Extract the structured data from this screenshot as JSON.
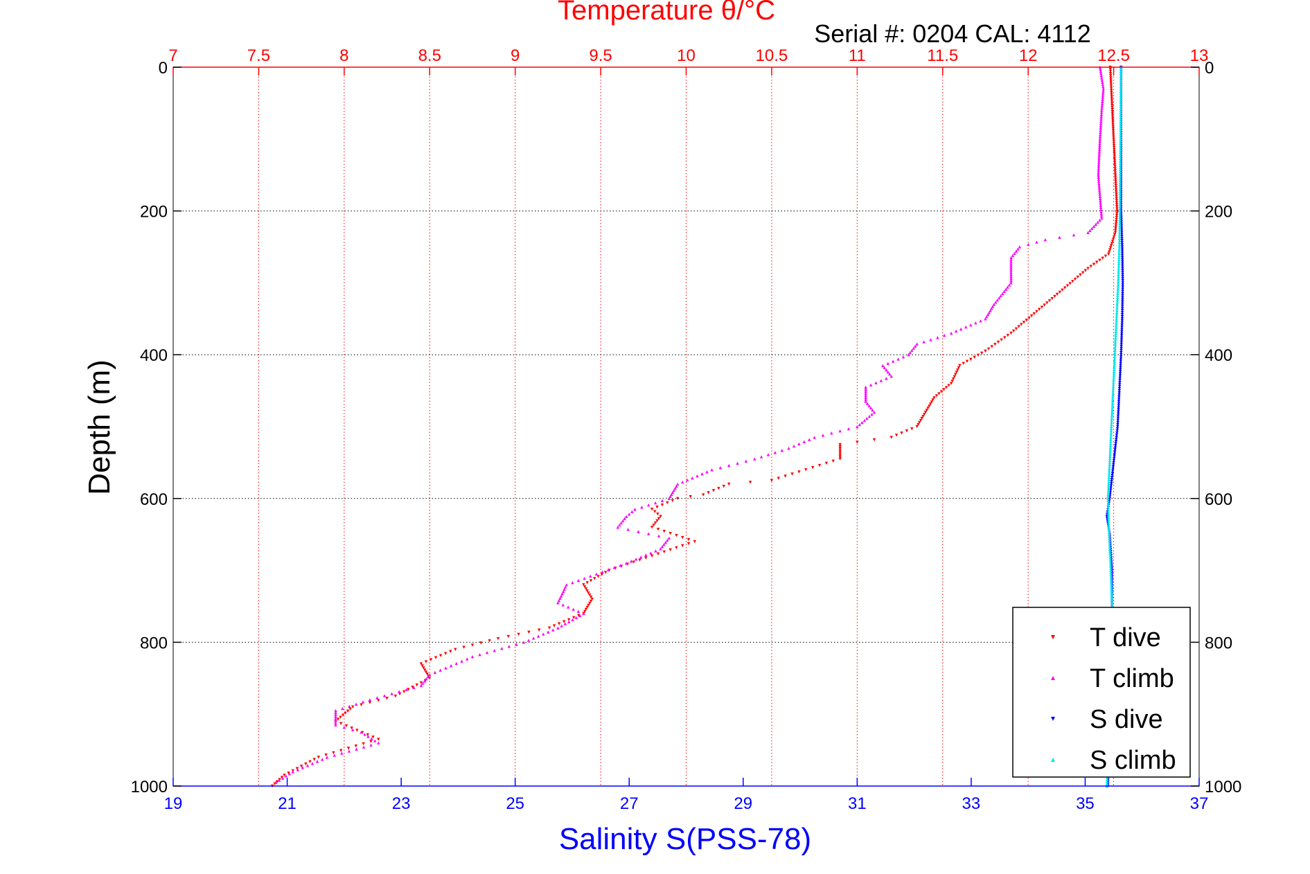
{
  "chart_data": {
    "type": "scatter",
    "top_axis": {
      "label": "Temperature θ/°C",
      "range": [
        7,
        13
      ],
      "ticks": [
        "7",
        "7.5",
        "8",
        "8.5",
        "9",
        "9.5",
        "10",
        "10.5",
        "11",
        "11.5",
        "12",
        "12.5",
        "13"
      ],
      "color": "#ff0000",
      "grid": true
    },
    "bottom_axis": {
      "label": "Salinity S(PSS-78)",
      "range": [
        19,
        37
      ],
      "ticks": [
        "19",
        "21",
        "23",
        "25",
        "27",
        "29",
        "31",
        "33",
        "35",
        "37"
      ],
      "color": "#0000ff"
    },
    "y_axis": {
      "label": "Depth (m)",
      "range": [
        0,
        1000
      ],
      "reversed": true,
      "ticks": [
        "0",
        "200",
        "400",
        "600",
        "800",
        "1000"
      ],
      "grid": true
    },
    "annotation": "Serial #: 0204  CAL: 4112",
    "legend": {
      "position": "bottom-right",
      "entries": [
        {
          "label": "T dive",
          "color": "#ff0000",
          "marker": "triangle-down"
        },
        {
          "label": "T climb",
          "color": "#ff00ff",
          "marker": "triangle-up"
        },
        {
          "label": "S dive",
          "color": "#0000ff",
          "marker": "triangle-down"
        },
        {
          "label": "S climb",
          "color": "#00e5ee",
          "marker": "triangle-up"
        }
      ]
    },
    "series": [
      {
        "name": "T dive",
        "axis": "temperature",
        "color": "#ff0000",
        "points": [
          [
            12.48,
            0
          ],
          [
            12.49,
            50
          ],
          [
            12.5,
            100
          ],
          [
            12.51,
            150
          ],
          [
            12.52,
            200
          ],
          [
            12.51,
            230
          ],
          [
            12.47,
            260
          ],
          [
            12.35,
            280
          ],
          [
            12.2,
            310
          ],
          [
            12.05,
            340
          ],
          [
            11.9,
            370
          ],
          [
            11.75,
            395
          ],
          [
            11.6,
            415
          ],
          [
            11.55,
            440
          ],
          [
            11.45,
            460
          ],
          [
            11.4,
            480
          ],
          [
            11.35,
            500
          ],
          [
            11.2,
            515
          ],
          [
            10.9,
            525
          ],
          [
            10.9,
            545
          ],
          [
            10.7,
            560
          ],
          [
            10.5,
            575
          ],
          [
            10.25,
            580
          ],
          [
            10.1,
            595
          ],
          [
            9.95,
            600
          ],
          [
            9.8,
            615
          ],
          [
            9.85,
            625
          ],
          [
            9.8,
            640
          ],
          [
            10.05,
            660
          ],
          [
            9.8,
            680
          ],
          [
            9.55,
            700
          ],
          [
            9.4,
            720
          ],
          [
            9.45,
            740
          ],
          [
            9.4,
            760
          ],
          [
            9.2,
            780
          ],
          [
            8.9,
            795
          ],
          [
            8.65,
            810
          ],
          [
            8.45,
            830
          ],
          [
            8.5,
            850
          ],
          [
            8.3,
            875
          ],
          [
            8.05,
            890
          ],
          [
            7.95,
            910
          ],
          [
            8.2,
            935
          ],
          [
            7.85,
            960
          ],
          [
            7.65,
            985
          ],
          [
            7.58,
            1000
          ]
        ]
      },
      {
        "name": "T climb",
        "axis": "temperature",
        "color": "#ff00ff",
        "points": [
          [
            12.42,
            0
          ],
          [
            12.44,
            30
          ],
          [
            12.43,
            60
          ],
          [
            12.42,
            100
          ],
          [
            12.41,
            150
          ],
          [
            12.42,
            180
          ],
          [
            12.43,
            210
          ],
          [
            12.35,
            230
          ],
          [
            12.1,
            240
          ],
          [
            11.95,
            250
          ],
          [
            11.9,
            265
          ],
          [
            11.9,
            300
          ],
          [
            11.8,
            330
          ],
          [
            11.75,
            350
          ],
          [
            11.55,
            370
          ],
          [
            11.35,
            385
          ],
          [
            11.3,
            400
          ],
          [
            11.15,
            415
          ],
          [
            11.2,
            430
          ],
          [
            11.05,
            445
          ],
          [
            11.05,
            465
          ],
          [
            11.1,
            480
          ],
          [
            11.0,
            500
          ],
          [
            10.75,
            515
          ],
          [
            10.6,
            530
          ],
          [
            10.4,
            545
          ],
          [
            10.15,
            560
          ],
          [
            9.95,
            580
          ],
          [
            9.9,
            600
          ],
          [
            9.7,
            615
          ],
          [
            9.65,
            625
          ],
          [
            9.6,
            640
          ],
          [
            9.9,
            655
          ],
          [
            9.85,
            670
          ],
          [
            9.65,
            690
          ],
          [
            9.3,
            720
          ],
          [
            9.25,
            745
          ],
          [
            9.4,
            760
          ],
          [
            9.25,
            780
          ],
          [
            9.05,
            800
          ],
          [
            8.75,
            820
          ],
          [
            8.5,
            845
          ],
          [
            8.45,
            860
          ],
          [
            8.15,
            880
          ],
          [
            7.95,
            895
          ],
          [
            7.95,
            915
          ],
          [
            8.1,
            925
          ],
          [
            8.2,
            940
          ],
          [
            7.9,
            960
          ],
          [
            7.7,
            980
          ],
          [
            7.6,
            995
          ]
        ]
      },
      {
        "name": "S dive",
        "axis": "salinity",
        "color": "#0000ff",
        "points": [
          [
            35.63,
            0
          ],
          [
            35.63,
            100
          ],
          [
            35.63,
            200
          ],
          [
            35.65,
            250
          ],
          [
            35.66,
            300
          ],
          [
            35.65,
            350
          ],
          [
            35.63,
            400
          ],
          [
            35.6,
            450
          ],
          [
            35.57,
            500
          ],
          [
            35.5,
            550
          ],
          [
            35.43,
            600
          ],
          [
            35.38,
            625
          ],
          [
            35.43,
            650
          ],
          [
            35.47,
            700
          ],
          [
            35.47,
            750
          ],
          [
            35.45,
            800
          ],
          [
            35.43,
            900
          ],
          [
            35.4,
            1000
          ]
        ]
      },
      {
        "name": "S climb",
        "axis": "salinity",
        "color": "#00e5ee",
        "points": [
          [
            35.63,
            0
          ],
          [
            35.62,
            100
          ],
          [
            35.61,
            200
          ],
          [
            35.6,
            250
          ],
          [
            35.58,
            300
          ],
          [
            35.55,
            350
          ],
          [
            35.52,
            400
          ],
          [
            35.49,
            450
          ],
          [
            35.46,
            500
          ],
          [
            35.43,
            550
          ],
          [
            35.4,
            600
          ],
          [
            35.42,
            650
          ],
          [
            35.45,
            700
          ],
          [
            35.47,
            750
          ],
          [
            35.45,
            800
          ],
          [
            35.43,
            900
          ],
          [
            35.38,
            1000
          ]
        ]
      }
    ]
  }
}
